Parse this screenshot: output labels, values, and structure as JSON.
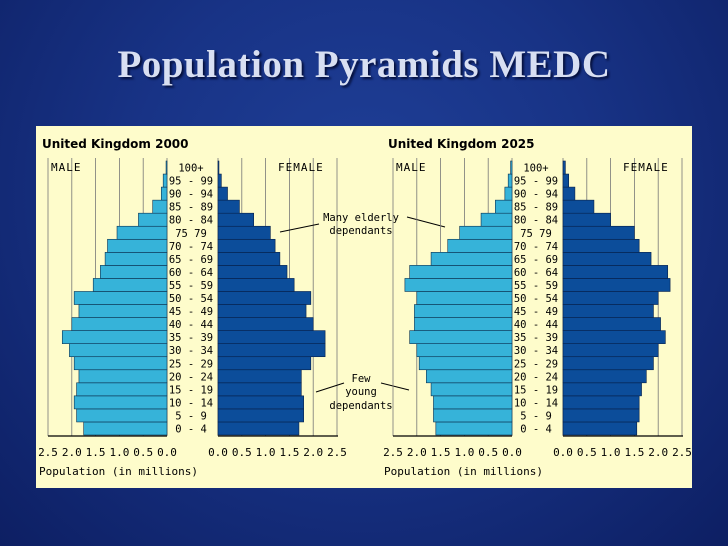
{
  "slide": {
    "title": "Population Pyramids MEDC"
  },
  "colors": {
    "male": "#36b3d9",
    "female": "#0c4d9a",
    "panel": "#fefccb",
    "background": "#183386"
  },
  "chart_data": [
    {
      "type": "bar",
      "orientation": "horizontal-pyramid",
      "title": "United Kingdom 2000",
      "left_label": "MALE",
      "right_label": "FEMALE",
      "xlabel": "Population (in millions)",
      "xlim": [
        0,
        2.5
      ],
      "xticks_left": [
        "2.5",
        "2.0",
        "1.5",
        "1.0",
        "0.5",
        "0.0"
      ],
      "xticks_right": [
        "0.0",
        "0.5",
        "1.0",
        "1.5",
        "2.0",
        "2.5"
      ],
      "categories": [
        "0 - 4",
        "5 - 9",
        "10 - 14",
        "15 - 19",
        "20 - 24",
        "25 - 29",
        "30 - 34",
        "35 - 39",
        "40 - 44",
        "45 - 49",
        "50 - 54",
        "55 - 59",
        "60 - 64",
        "65 - 69",
        "70 - 74",
        "75 79",
        "80 - 84",
        "85 - 89",
        "90 - 94",
        "95 - 99",
        "100+"
      ],
      "series": [
        {
          "name": "MALE",
          "values": [
            1.75,
            1.9,
            1.95,
            1.9,
            1.85,
            1.95,
            2.05,
            2.2,
            2.0,
            1.85,
            1.95,
            1.55,
            1.4,
            1.3,
            1.25,
            1.05,
            0.6,
            0.3,
            0.12,
            0.08,
            0.02
          ]
        },
        {
          "name": "FEMALE",
          "values": [
            1.7,
            1.8,
            1.8,
            1.75,
            1.75,
            1.95,
            2.25,
            2.25,
            2.0,
            1.85,
            1.95,
            1.6,
            1.45,
            1.3,
            1.2,
            1.1,
            0.75,
            0.45,
            0.2,
            0.07,
            0.02
          ]
        }
      ],
      "annotations": [
        {
          "text": [
            "Many elderly",
            "dependants"
          ]
        },
        {
          "text": [
            "Few",
            "young",
            "dependants"
          ]
        }
      ]
    },
    {
      "type": "bar",
      "orientation": "horizontal-pyramid",
      "title": "United Kingdom 2025",
      "left_label": "MALE",
      "right_label": "FEMALE",
      "xlabel": "Population (in millions)",
      "xlim": [
        0,
        2.5
      ],
      "xticks_left": [
        "2.5",
        "2.0",
        "1.5",
        "1.0",
        "0.5",
        "0.0"
      ],
      "xticks_right": [
        "0.0",
        "0.5",
        "1.0",
        "1.5",
        "2.0",
        "2.5"
      ],
      "categories": [
        "0 - 4",
        "5 - 9",
        "10 - 14",
        "15 - 19",
        "20 - 24",
        "25 - 29",
        "30 - 34",
        "35 - 39",
        "40 - 44",
        "45 - 49",
        "50 - 54",
        "55 - 59",
        "60 - 64",
        "65 - 69",
        "70 - 74",
        "75 79",
        "80 - 84",
        "85 - 89",
        "90 - 94",
        "95 - 99",
        "100+"
      ],
      "series": [
        {
          "name": "MALE",
          "values": [
            1.6,
            1.65,
            1.65,
            1.7,
            1.8,
            1.95,
            2.0,
            2.15,
            2.05,
            2.05,
            2.0,
            2.25,
            2.15,
            1.7,
            1.35,
            1.1,
            0.65,
            0.35,
            0.15,
            0.08,
            0.03
          ]
        },
        {
          "name": "FEMALE",
          "values": [
            1.55,
            1.6,
            1.6,
            1.65,
            1.75,
            1.9,
            2.0,
            2.15,
            2.05,
            1.9,
            2.0,
            2.25,
            2.2,
            1.85,
            1.6,
            1.5,
            1.0,
            0.65,
            0.25,
            0.12,
            0.05
          ]
        }
      ]
    }
  ]
}
